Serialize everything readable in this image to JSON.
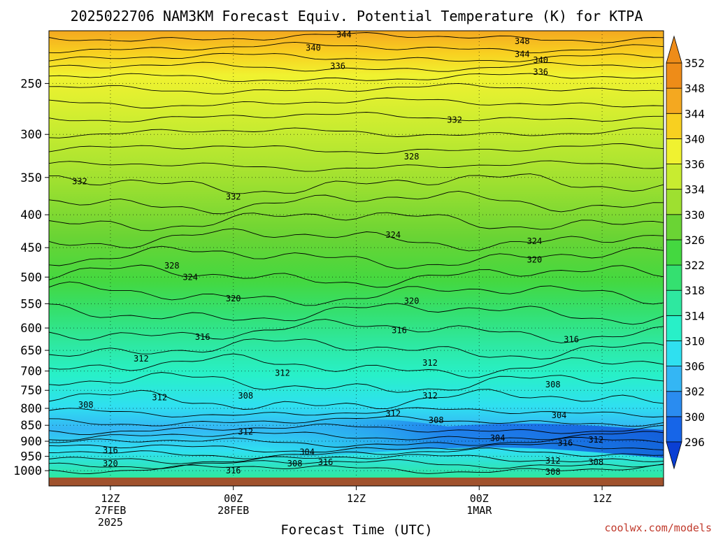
{
  "title": "2025022706 NAM3KM Forecast Equiv. Potential Temperature (K) for KTPA",
  "xlabel": "Forecast Time (UTC)",
  "credit": "coolwx.com/models",
  "chart_data": {
    "type": "heatmap",
    "title": "2025022706 NAM3KM Forecast Equiv. Potential Temperature (K) for KTPA",
    "xlabel": "Forecast Time (UTC)",
    "ylabel": "",
    "y_scale": "log",
    "y_ticks": [
      250,
      300,
      350,
      400,
      450,
      500,
      550,
      600,
      650,
      700,
      750,
      800,
      850,
      900,
      950,
      1000
    ],
    "x_ticks": [
      {
        "line1": "12Z",
        "line2": "27FEB",
        "line3": "2025"
      },
      {
        "line1": "00Z",
        "line2": "28FEB",
        "line3": ""
      },
      {
        "line1": "12Z",
        "line2": "",
        "line3": ""
      },
      {
        "line1": "00Z",
        "line2": "1MAR",
        "line3": ""
      },
      {
        "line1": "12Z",
        "line2": "",
        "line3": ""
      }
    ],
    "colorbar_levels": [
      296,
      300,
      302,
      306,
      310,
      314,
      318,
      322,
      326,
      330,
      334,
      336,
      340,
      344,
      348,
      352
    ],
    "colorbar_colors": [
      "#0a3fd4",
      "#1665e8",
      "#2a8cf0",
      "#34b6f4",
      "#2fe0f0",
      "#28f0c8",
      "#2ee8a0",
      "#34e070",
      "#44d840",
      "#6ad434",
      "#9ee030",
      "#c8ec30",
      "#f0f230",
      "#f8d020",
      "#f4a820",
      "#ee8c18"
    ],
    "contour_labels": [
      {
        "t": 0.3,
        "p": 1000,
        "v": "316"
      },
      {
        "t": 0.1,
        "p": 975,
        "v": "320"
      },
      {
        "t": 0.1,
        "p": 930,
        "v": "316"
      },
      {
        "t": 0.32,
        "p": 870,
        "v": "312"
      },
      {
        "t": 0.06,
        "p": 790,
        "v": "308"
      },
      {
        "t": 0.18,
        "p": 770,
        "v": "312"
      },
      {
        "t": 0.32,
        "p": 765,
        "v": "308"
      },
      {
        "t": 0.4,
        "p": 975,
        "v": "308"
      },
      {
        "t": 0.42,
        "p": 935,
        "v": "304"
      },
      {
        "t": 0.45,
        "p": 970,
        "v": "316"
      },
      {
        "t": 0.56,
        "p": 815,
        "v": "312"
      },
      {
        "t": 0.62,
        "p": 765,
        "v": "312"
      },
      {
        "t": 0.63,
        "p": 835,
        "v": "308"
      },
      {
        "t": 0.73,
        "p": 890,
        "v": "304"
      },
      {
        "t": 0.84,
        "p": 905,
        "v": "316"
      },
      {
        "t": 0.89,
        "p": 895,
        "v": "312"
      },
      {
        "t": 0.82,
        "p": 965,
        "v": "312"
      },
      {
        "t": 0.89,
        "p": 970,
        "v": "308"
      },
      {
        "t": 0.82,
        "p": 1005,
        "v": "308"
      },
      {
        "t": 0.83,
        "p": 820,
        "v": "304"
      },
      {
        "t": 0.82,
        "p": 735,
        "v": "308"
      },
      {
        "t": 0.15,
        "p": 670,
        "v": "312"
      },
      {
        "t": 0.38,
        "p": 705,
        "v": "312"
      },
      {
        "t": 0.62,
        "p": 680,
        "v": "312"
      },
      {
        "t": 0.85,
        "p": 625,
        "v": "316"
      },
      {
        "t": 0.25,
        "p": 620,
        "v": "316"
      },
      {
        "t": 0.57,
        "p": 605,
        "v": "316"
      },
      {
        "t": 0.3,
        "p": 540,
        "v": "320"
      },
      {
        "t": 0.59,
        "p": 545,
        "v": "320"
      },
      {
        "t": 0.79,
        "p": 470,
        "v": "320"
      },
      {
        "t": 0.2,
        "p": 480,
        "v": "328"
      },
      {
        "t": 0.23,
        "p": 500,
        "v": "324"
      },
      {
        "t": 0.56,
        "p": 430,
        "v": "324"
      },
      {
        "t": 0.79,
        "p": 440,
        "v": "324"
      },
      {
        "t": 0.05,
        "p": 355,
        "v": "332"
      },
      {
        "t": 0.3,
        "p": 375,
        "v": "332"
      },
      {
        "t": 0.59,
        "p": 325,
        "v": "328"
      },
      {
        "t": 0.66,
        "p": 285,
        "v": "332"
      },
      {
        "t": 0.47,
        "p": 235,
        "v": "336"
      },
      {
        "t": 0.8,
        "p": 240,
        "v": "336"
      },
      {
        "t": 0.8,
        "p": 230,
        "v": "340"
      },
      {
        "t": 0.43,
        "p": 220,
        "v": "340"
      },
      {
        "t": 0.48,
        "p": 210,
        "v": "344"
      },
      {
        "t": 0.77,
        "p": 225,
        "v": "344"
      },
      {
        "t": 0.77,
        "p": 215,
        "v": "348"
      }
    ]
  }
}
